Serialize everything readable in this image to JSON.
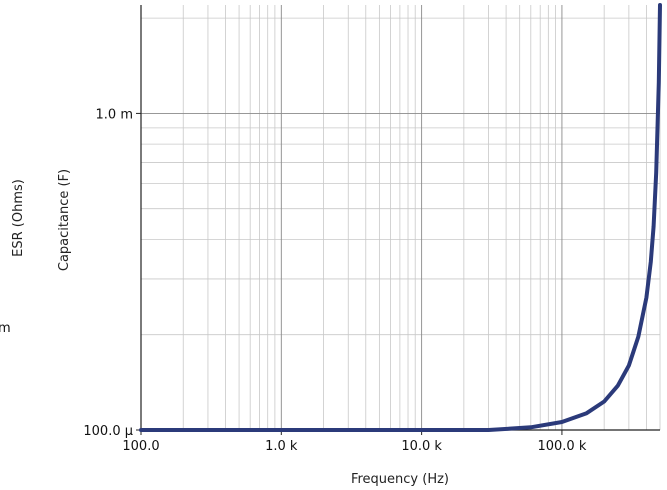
{
  "chart_data": {
    "type": "line",
    "title": "",
    "xlabel": "Frequency (Hz)",
    "ylabel": "Capacitance (F)",
    "secondary_ylabel": "ESR (Ohms)",
    "secondary_tick_fragment": "m",
    "x_scale": "log",
    "y_scale": "log",
    "xlim": [
      100,
      500000
    ],
    "ylim": [
      0.0001,
      0.0022
    ],
    "grid": true,
    "x_ticks": [
      {
        "value": 100,
        "label": "100.0"
      },
      {
        "value": 1000,
        "label": "1.0 k"
      },
      {
        "value": 10000,
        "label": "10.0 k"
      },
      {
        "value": 100000,
        "label": "100.0 k"
      }
    ],
    "y_ticks": [
      {
        "value": 0.0001,
        "label": "100.0 µ"
      },
      {
        "value": 0.001,
        "label": "1.0 m"
      }
    ],
    "series": [
      {
        "color": "#2b3a7a",
        "x": [
          100,
          1000,
          10000,
          30000,
          60000,
          100000,
          150000,
          200000,
          250000,
          300000,
          350000,
          400000,
          430000,
          450000,
          470000,
          490000,
          500000
        ],
        "y": [
          0.0001,
          0.0001,
          0.0001,
          0.0001,
          0.000102,
          0.000106,
          0.000113,
          0.000123,
          0.000138,
          0.00016,
          0.000197,
          0.000262,
          0.00034,
          0.00044,
          0.00065,
          0.00125,
          0.0022
        ]
      }
    ]
  }
}
